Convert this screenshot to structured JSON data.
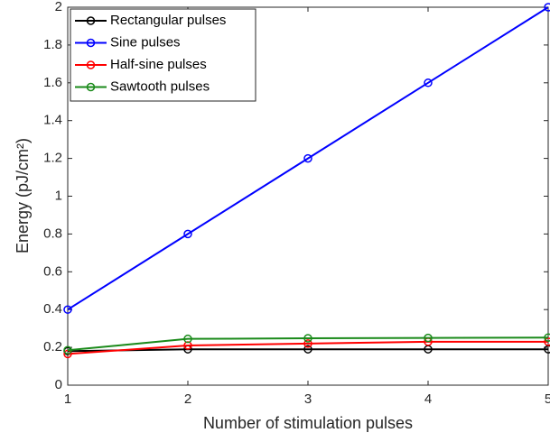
{
  "chart_data": {
    "type": "line",
    "xlabel": "Number of stimulation pulses",
    "ylabel": "Energy (pJ/cm²)",
    "x": [
      1,
      2,
      3,
      4,
      5
    ],
    "xlim": [
      1,
      5
    ],
    "xticks": [
      1,
      2,
      3,
      4,
      5
    ],
    "ylim": [
      0,
      2
    ],
    "yticks": [
      0,
      0.2,
      0.4,
      0.6,
      0.8,
      1,
      1.2,
      1.4,
      1.6,
      1.8,
      2
    ],
    "grid": false,
    "legend": "upper left",
    "series": [
      {
        "name": "Rectangular pulses",
        "color": "#000000",
        "values": [
          0.18,
          0.19,
          0.19,
          0.19,
          0.19
        ]
      },
      {
        "name": "Sine pulses",
        "color": "#0000ff",
        "values": [
          0.4,
          0.8,
          1.2,
          1.6,
          2.0
        ]
      },
      {
        "name": "Half-sine pulses",
        "color": "#ff0000",
        "values": [
          0.165,
          0.21,
          0.22,
          0.23,
          0.23
        ]
      },
      {
        "name": "Sawtooth pulses",
        "color": "#1a8a1a",
        "values": [
          0.185,
          0.245,
          0.248,
          0.25,
          0.252
        ]
      }
    ]
  }
}
